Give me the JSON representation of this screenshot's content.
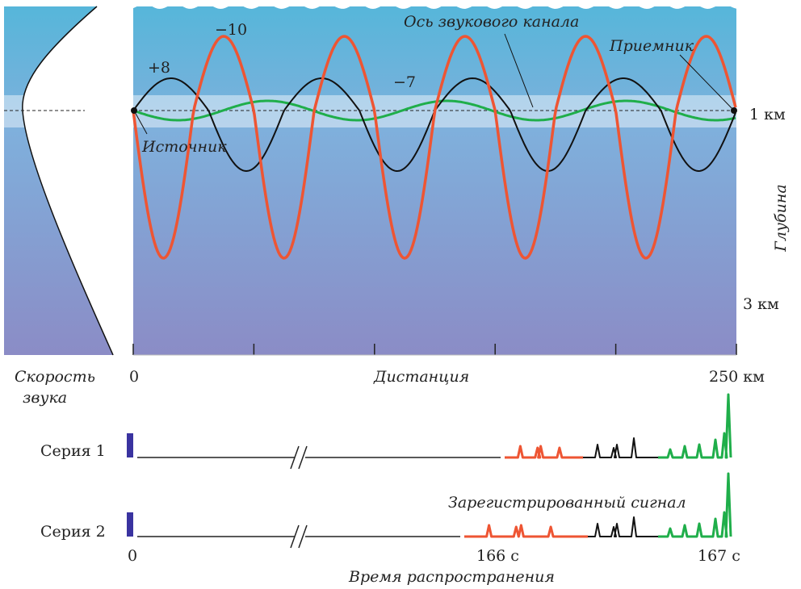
{
  "panel": {
    "axis_label": "Ось звукового канала",
    "receiver": "Приемник",
    "source": "Источник",
    "rays": [
      "+8",
      "−10",
      "−7"
    ],
    "depth_ticks": [
      "1 км",
      "3 км"
    ],
    "depth_label": "Глубина",
    "speed_label": [
      "Скорость",
      "звука"
    ],
    "distance_ticks": [
      "0",
      "250 км"
    ],
    "distance_label": "Дистанция"
  },
  "signals": {
    "series": [
      "Серия 1",
      "Серия 2"
    ],
    "caption": "Зарегистрированный сигнал",
    "time_ticks": [
      "0",
      "166 с",
      "167 с"
    ],
    "time_label": "Время распространения"
  }
}
